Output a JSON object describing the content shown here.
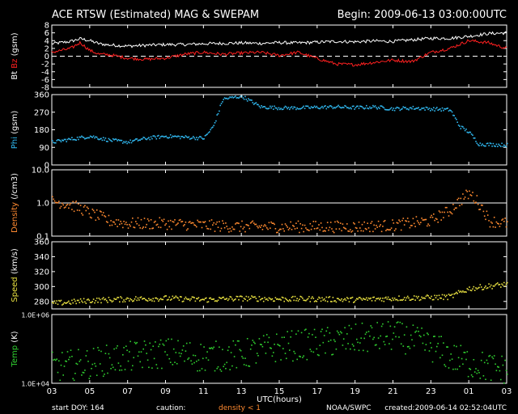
{
  "header": {
    "title": "ACE RTSW (Estimated) MAG & SWEPAM",
    "begin": "Begin: 2009-06-13 03:00:00UTC"
  },
  "colors": {
    "background": "#000000",
    "axes": "#ffffff",
    "bt": "#ffffff",
    "bz": "#ff2020",
    "phi": "#30b8f0",
    "density": "#ff8a30",
    "speed": "#e8e040",
    "temp": "#30d030"
  },
  "chart_data": {
    "type": "scatter",
    "x_axis": {
      "label": "UTC(hours)",
      "tick_labels": [
        "03",
        "05",
        "07",
        "09",
        "11",
        "13",
        "15",
        "17",
        "19",
        "21",
        "23",
        "01",
        "03"
      ]
    },
    "panels": [
      {
        "id": "mag",
        "ylabel_parts": [
          "Bt",
          "Bz",
          "(gsm)"
        ],
        "ylim": [
          -8,
          8
        ],
        "ticks": [
          "8",
          "6",
          "4",
          "2",
          "0",
          "-2",
          "-4",
          "-6",
          "-8"
        ],
        "zero_line": true,
        "series": [
          {
            "name": "Bt",
            "x": [
              0,
              1,
              1.5,
              2,
              2.5,
              3,
              4,
              5,
              6,
              7,
              8,
              9,
              10,
              11,
              12,
              13,
              14,
              15,
              16,
              17,
              18,
              19,
              20,
              21,
              22,
              23,
              24
            ],
            "y": [
              3.2,
              3.8,
              4.5,
              4.0,
              3.2,
              2.9,
              2.6,
              2.8,
              3.0,
              3.0,
              3.2,
              3.3,
              3.4,
              3.3,
              3.5,
              3.4,
              3.6,
              3.8,
              3.7,
              3.9,
              3.8,
              4.2,
              4.6,
              4.6,
              5.1,
              5.8,
              6.0
            ]
          },
          {
            "name": "Bz",
            "x": [
              0,
              1,
              1.5,
              2,
              2.5,
              3,
              4,
              5,
              6,
              7,
              8,
              9,
              10,
              11,
              12,
              13,
              14,
              15,
              16,
              17,
              18,
              19,
              20,
              21,
              22,
              23,
              24
            ],
            "y": [
              1.0,
              2.0,
              3.5,
              1.5,
              0.5,
              0.4,
              -0.5,
              -0.8,
              -0.5,
              0.5,
              1.0,
              0.5,
              0.8,
              1.0,
              0.2,
              1.0,
              -0.6,
              -2.0,
              -2.2,
              -1.6,
              -1.0,
              -1.4,
              1.0,
              2.0,
              4.0,
              3.5,
              2.0
            ]
          }
        ]
      },
      {
        "id": "phi",
        "ylabel_parts": [
          "Phi",
          "(gsm)"
        ],
        "ylim": [
          0,
          360
        ],
        "ticks": [
          "360",
          "270",
          "180",
          "90",
          "0"
        ],
        "series": [
          {
            "name": "Phi",
            "x": [
              0,
              1,
              2,
              3,
              4,
              5,
              6,
              7,
              8,
              8.5,
              9,
              10,
              11,
              12,
              13,
              14,
              15,
              16,
              17,
              18,
              19,
              20,
              21,
              21.5,
              22,
              22.5,
              23,
              24
            ],
            "y": [
              120,
              135,
              150,
              130,
              120,
              140,
              150,
              145,
              140,
              200,
              340,
              355,
              300,
              295,
              295,
              298,
              300,
              296,
              300,
              290,
              295,
              290,
              285,
              200,
              170,
              110,
              108,
              105
            ]
          }
        ]
      },
      {
        "id": "density",
        "ylabel_parts": [
          "Density",
          "(/cm3)"
        ],
        "ylim": [
          0.1,
          10
        ],
        "scale": "log",
        "ticks": [
          "10.0",
          "1.0",
          "0.1"
        ],
        "series": [
          {
            "name": "Density",
            "x": [
              0,
              1,
              2,
              3,
              4,
              6,
              8,
              10,
              12,
              14,
              16,
              18,
              20,
              21,
              21.5,
              22,
              22.5,
              23,
              24
            ],
            "y": [
              1.2,
              0.9,
              0.5,
              0.3,
              0.25,
              0.25,
              0.22,
              0.2,
              0.2,
              0.2,
              0.2,
              0.22,
              0.3,
              0.6,
              1.2,
              2.0,
              1.0,
              0.3,
              0.25
            ]
          }
        ]
      },
      {
        "id": "speed",
        "ylabel_parts": [
          "Speed",
          "(km/s)"
        ],
        "ylim": [
          270,
          360
        ],
        "ticks": [
          "360",
          "340",
          "320",
          "300",
          "280"
        ],
        "series": [
          {
            "name": "Speed",
            "x": [
              0,
              2,
              4,
              6,
              8,
              10,
              12,
              14,
              16,
              18,
              20,
              21,
              22,
              23,
              24
            ],
            "y": [
              278,
              282,
              284,
              285,
              283,
              285,
              284,
              284,
              283,
              285,
              286,
              287,
              298,
              301,
              304
            ]
          }
        ]
      },
      {
        "id": "temp",
        "ylabel_parts": [
          "Temp",
          "(K)"
        ],
        "ylim": [
          10000,
          1000000
        ],
        "scale": "log",
        "ticks": [
          "1.0E+06",
          "1.0E+04"
        ],
        "series": [
          {
            "name": "Temp",
            "x": [
              0,
              2,
              4,
              6,
              8,
              10,
              12,
              14,
              16,
              18,
              20,
              21,
              22,
              23,
              24
            ],
            "y": [
              30000,
              40000,
              60000,
              80000,
              60000,
              70000,
              120000,
              150000,
              200000,
              250000,
              120000,
              60000,
              40000,
              30000,
              25000
            ]
          }
        ]
      }
    ]
  },
  "footer": {
    "start_doy": "start DOY: 164",
    "caution": "caution:",
    "density_note": "density < 1",
    "source": "NOAA/SWPC",
    "created": "created:2009-06-14 02:52:04UTC"
  }
}
